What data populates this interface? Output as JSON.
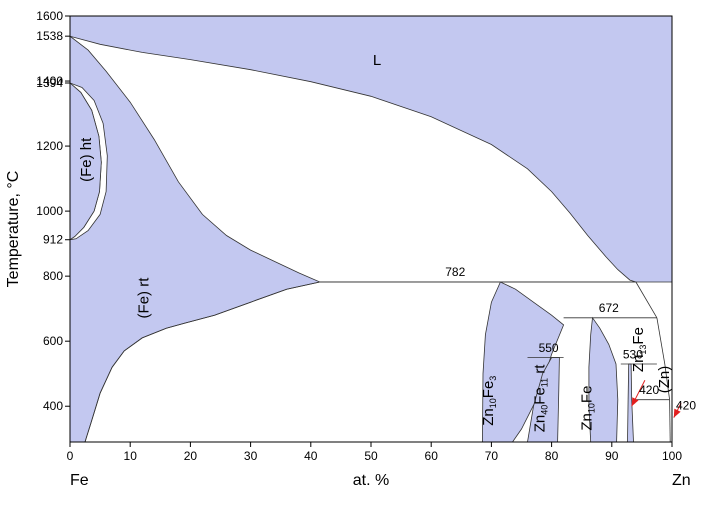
{
  "chart_data": {
    "type": "phase-diagram",
    "xlabel": "at. %",
    "ylabel": "Temperature, °C",
    "x_left_label": "Fe",
    "x_right_label": "Zn",
    "xlim": [
      0,
      100
    ],
    "ylim": [
      290,
      1600
    ],
    "x_ticks": [
      "0",
      "10",
      "20",
      "30",
      "40",
      "50",
      "60",
      "70",
      "80",
      "90",
      "100"
    ],
    "y_ticks": [
      {
        "value": 400,
        "label": "400"
      },
      {
        "value": 600,
        "label": "600"
      },
      {
        "value": 800,
        "label": "800"
      },
      {
        "value": 912,
        "label": "912"
      },
      {
        "value": 1000,
        "label": "1000"
      },
      {
        "value": 1200,
        "label": "1200"
      },
      {
        "value": 1394,
        "label": "1394"
      },
      {
        "value": 1400,
        "label": "1400"
      },
      {
        "value": 1538,
        "label": "1538"
      },
      {
        "value": 1600,
        "label": "1600"
      }
    ],
    "isotherms": [
      {
        "label": "782",
        "temperature": 782,
        "x_from": 41.5,
        "x_to": 94
      },
      {
        "label": "672",
        "temperature": 672,
        "x_from": 82,
        "x_to": 97.5
      },
      {
        "label": "550",
        "temperature": 550,
        "x_from": 76,
        "x_to": 82
      },
      {
        "label": "530",
        "temperature": 530,
        "x_from": 91.5,
        "x_to": 97.5
      },
      {
        "label": "420",
        "temperature": 420,
        "x_from": 93.8,
        "x_to": 100
      },
      {
        "label": "420",
        "temperature": 420,
        "x_from": 99.6,
        "x_to": 100
      }
    ],
    "regions": [
      {
        "name": "L",
        "x": 51,
        "y": 1450
      },
      {
        "name": "(Fe) ht",
        "x": 3.5,
        "y": 1090,
        "rotate": -90
      },
      {
        "name": "(Fe) rt",
        "x": 13,
        "y": 670,
        "rotate": -90
      },
      {
        "name": "Zn10Fe3",
        "main": "Zn",
        "sub": "10",
        "tail": "Fe",
        "sub2": "3",
        "x": 70.3,
        "y": 340,
        "rotate": -90
      },
      {
        "name": "Zn40Fe11 rt",
        "main": "Zn",
        "sub": "40",
        "tail": "Fe",
        "sub2": "11",
        "extra": " rt",
        "x": 78.8,
        "y": 320,
        "rotate": -90
      },
      {
        "name": "Zn10Fe",
        "main": "Zn",
        "sub": "10",
        "tail": "Fe",
        "sub2": "",
        "x": 86.6,
        "y": 325,
        "rotate": -90
      },
      {
        "name": "Zn13Fe",
        "main": "Zn",
        "sub": "13",
        "tail": "Fe",
        "sub2": "",
        "x": 95.2,
        "y": 505,
        "rotate": -90
      },
      {
        "name": "(Zn)",
        "x": 99.5,
        "y": 440,
        "rotate": -90
      }
    ],
    "colors": {
      "phase": "#c3c8f0",
      "arrow": "#e21e1e"
    }
  }
}
